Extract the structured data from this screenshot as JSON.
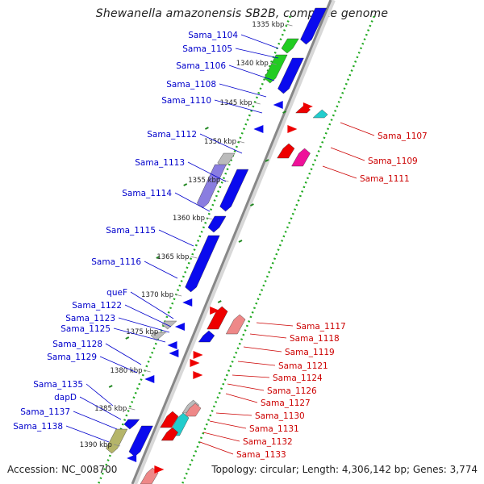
{
  "title": "Shewanella amazonensis SB2B, complete genome",
  "footer": {
    "accession": "Accession: NC_008700",
    "summary": "Topology: circular; Length: 4,306,142 bp; Genes: 3,774"
  },
  "ticks": [
    "1335 kbp",
    "1340 kbp",
    "1345 kbp",
    "1350 kbp",
    "1355 kbp",
    "1360 kbp",
    "1365 kbp",
    "1370 kbp",
    "1375 kbp",
    "1380 kbp",
    "1385 kbp",
    "1390 kbp"
  ],
  "forward_genes": [
    "Sama_1104",
    "Sama_1105",
    "Sama_1106",
    "Sama_1108",
    "Sama_1110",
    "Sama_1112",
    "Sama_1113",
    "Sama_1114",
    "Sama_1115",
    "Sama_1116",
    "queF",
    "Sama_1122",
    "Sama_1123",
    "Sama_1125",
    "Sama_1128",
    "Sama_1129",
    "Sama_1135",
    "dapD",
    "Sama_1137",
    "Sama_1138"
  ],
  "reverse_genes": [
    "Sama_1107",
    "Sama_1109",
    "Sama_1111",
    "Sama_1117",
    "Sama_1118",
    "Sama_1119",
    "Sama_1121",
    "Sama_1124",
    "Sama_1126",
    "Sama_1127",
    "Sama_1130",
    "Sama_1131",
    "Sama_1132",
    "Sama_1133"
  ],
  "colors": {
    "forward_label": "#0000cc",
    "reverse_label": "#cc0000",
    "gene_blue": "#0a0aee",
    "gene_green": "#22cc22",
    "gene_red": "#ee0000",
    "gene_magenta": "#ee1199",
    "gene_purple": "#8a7de0",
    "gene_cyan": "#22cccc",
    "gene_pink": "#ee8888",
    "gene_grey": "#bbbbbb",
    "gene_olive": "#b5b56a",
    "backbone": "#888888",
    "gc_dots": "#22aa22"
  }
}
